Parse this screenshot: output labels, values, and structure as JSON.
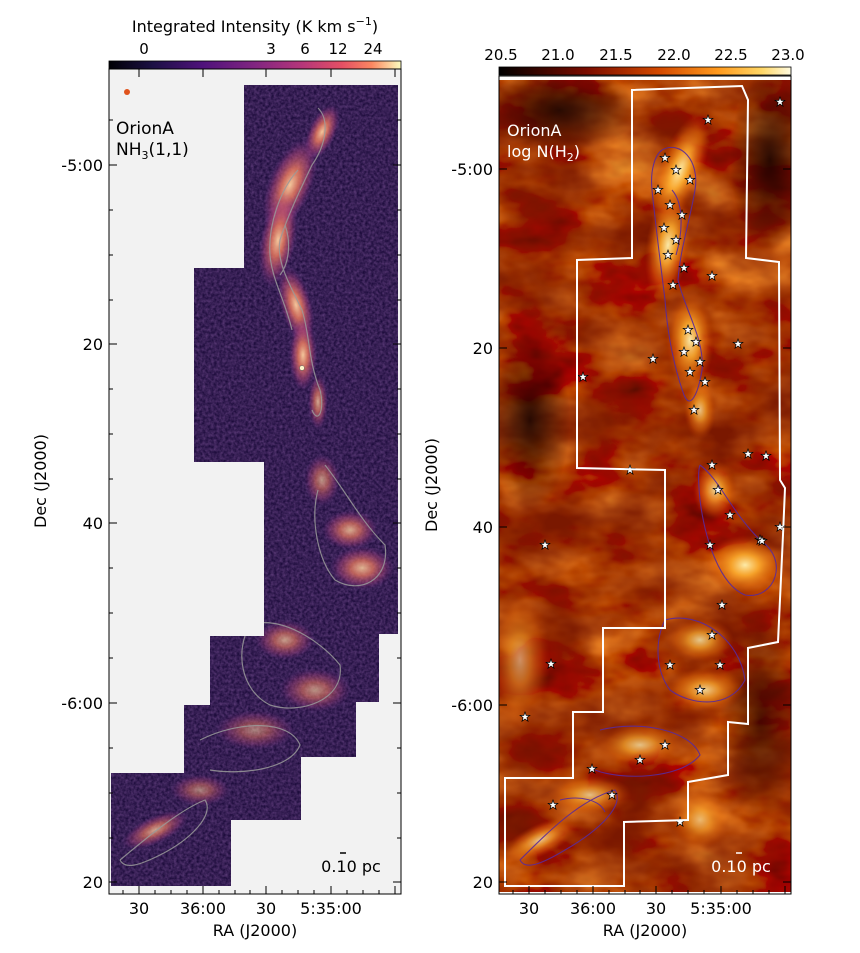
{
  "left_panel": {
    "colorbar_title": "Integrated Intensity (K km s",
    "colorbar_title_sup": "−1",
    "colorbar_title_end": ")",
    "colorbar_ticks": [
      "0",
      "3",
      "6",
      "12",
      "24"
    ],
    "region": "OrionA",
    "line_main": "NH",
    "line_sub": "3",
    "line_end": "(1,1)",
    "scalebar": "0.10 pc",
    "beam_color": "#e0531c",
    "map_colors": [
      "#120a2e",
      "#3d1470",
      "#7a2b8c",
      "#c04a7a",
      "#f07c5e",
      "#fdd0a0"
    ],
    "background_color": "#f2f2f2"
  },
  "right_panel": {
    "colorbar_ticks": [
      "20.5",
      "21.0",
      "21.5",
      "22.0",
      "22.5",
      "23.0"
    ],
    "region": "OrionA",
    "quantity_main": "log N(H",
    "quantity_sub": "2",
    "quantity_end": ")",
    "scalebar": "0.10 pc",
    "map_colors": [
      "#1a0000",
      "#6a0c00",
      "#b83a00",
      "#e8700c",
      "#ffb030",
      "#fff2b0"
    ],
    "contour_color": "#5a2a9a"
  },
  "axes": {
    "xlabel": "RA (J2000)",
    "ylabel": "Dec (J2000)",
    "x_ticks": [
      "30",
      "36:00",
      "30",
      "5:35:00"
    ],
    "y_ticks": [
      "-5:00",
      "20",
      "40",
      "-6:00",
      "20"
    ]
  }
}
